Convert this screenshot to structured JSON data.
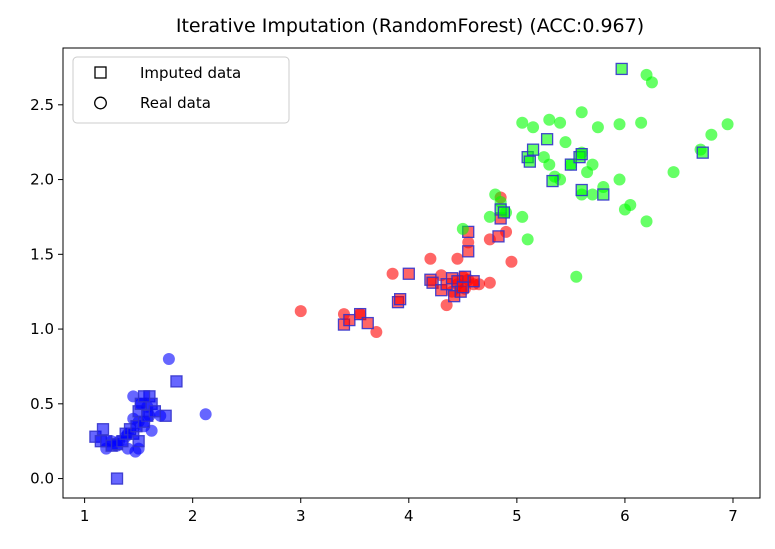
{
  "chart_data": {
    "type": "scatter",
    "title": "Iterative Imputation (RandomForest) (ACC:0.967)",
    "xlabel": "",
    "ylabel": "",
    "xlim": [
      0.8,
      7.25
    ],
    "ylim": [
      -0.13,
      2.88
    ],
    "xticks": [
      1,
      2,
      3,
      4,
      5,
      6,
      7
    ],
    "yticks": [
      0.0,
      0.5,
      1.0,
      1.5,
      2.0,
      2.5
    ],
    "ytick_labels": [
      "0.0",
      "0.5",
      "1.0",
      "1.5",
      "2.0",
      "2.5"
    ],
    "grid": false,
    "legend": {
      "placement": "top-left",
      "entries": [
        {
          "marker": "square",
          "label": "Imputed data"
        },
        {
          "marker": "circle",
          "label": "Real data"
        }
      ]
    },
    "classes": [
      {
        "color": "#0000ff",
        "real": [
          [
            1.32,
            0.25
          ],
          [
            1.4,
            0.3
          ],
          [
            1.5,
            0.2
          ],
          [
            1.55,
            0.35
          ],
          [
            1.45,
            0.55
          ],
          [
            1.6,
            0.42
          ],
          [
            1.7,
            0.42
          ],
          [
            1.78,
            0.8
          ],
          [
            2.12,
            0.43
          ],
          [
            1.2,
            0.2
          ],
          [
            1.38,
            0.28
          ],
          [
            1.62,
            0.32
          ],
          [
            1.47,
            0.18
          ],
          [
            1.3,
            0.22
          ],
          [
            1.52,
            0.5
          ],
          [
            1.58,
            0.48
          ],
          [
            1.25,
            0.25
          ],
          [
            1.45,
            0.4
          ],
          [
            1.5,
            0.38
          ],
          [
            1.4,
            0.2
          ]
        ],
        "imputed": [
          [
            1.1,
            0.28
          ],
          [
            1.15,
            0.25
          ],
          [
            1.17,
            0.33
          ],
          [
            1.2,
            0.25
          ],
          [
            1.25,
            0.22
          ],
          [
            1.3,
            0.0
          ],
          [
            1.3,
            0.23
          ],
          [
            1.35,
            0.25
          ],
          [
            1.38,
            0.3
          ],
          [
            1.42,
            0.33
          ],
          [
            1.45,
            0.3
          ],
          [
            1.48,
            0.35
          ],
          [
            1.5,
            0.45
          ],
          [
            1.52,
            0.5
          ],
          [
            1.55,
            0.38
          ],
          [
            1.58,
            0.42
          ],
          [
            1.6,
            0.55
          ],
          [
            1.62,
            0.5
          ],
          [
            1.65,
            0.45
          ],
          [
            1.75,
            0.42
          ],
          [
            1.85,
            0.65
          ],
          [
            1.55,
            0.55
          ],
          [
            1.5,
            0.25
          ]
        ]
      },
      {
        "color": "#ff0000",
        "real": [
          [
            3.0,
            1.12
          ],
          [
            3.4,
            1.1
          ],
          [
            3.55,
            1.1
          ],
          [
            3.7,
            0.98
          ],
          [
            3.85,
            1.37
          ],
          [
            4.2,
            1.47
          ],
          [
            4.35,
            1.16
          ],
          [
            4.45,
            1.3
          ],
          [
            4.5,
            1.35
          ],
          [
            4.55,
            1.58
          ],
          [
            4.65,
            1.3
          ],
          [
            4.75,
            1.31
          ],
          [
            4.85,
            1.88
          ],
          [
            4.95,
            1.45
          ],
          [
            4.9,
            1.65
          ],
          [
            4.45,
            1.47
          ],
          [
            4.3,
            1.36
          ],
          [
            4.6,
            1.3
          ],
          [
            4.75,
            1.6
          ],
          [
            4.4,
            1.25
          ],
          [
            4.52,
            1.27
          ],
          [
            4.55,
            1.33
          ]
        ],
        "imputed": [
          [
            3.4,
            1.03
          ],
          [
            3.45,
            1.06
          ],
          [
            3.55,
            1.1
          ],
          [
            3.62,
            1.04
          ],
          [
            3.9,
            1.18
          ],
          [
            3.92,
            1.2
          ],
          [
            4.0,
            1.37
          ],
          [
            4.2,
            1.33
          ],
          [
            4.22,
            1.31
          ],
          [
            4.3,
            1.26
          ],
          [
            4.35,
            1.3
          ],
          [
            4.4,
            1.34
          ],
          [
            4.42,
            1.22
          ],
          [
            4.45,
            1.32
          ],
          [
            4.48,
            1.25
          ],
          [
            4.5,
            1.28
          ],
          [
            4.52,
            1.35
          ],
          [
            4.55,
            1.52
          ],
          [
            4.55,
            1.65
          ],
          [
            4.6,
            1.32
          ],
          [
            4.83,
            1.62
          ],
          [
            4.85,
            1.74
          ]
        ]
      },
      {
        "color": "#00ff00",
        "real": [
          [
            4.5,
            1.67
          ],
          [
            4.75,
            1.75
          ],
          [
            4.8,
            1.9
          ],
          [
            4.85,
            1.85
          ],
          [
            4.9,
            1.78
          ],
          [
            5.05,
            1.75
          ],
          [
            5.05,
            2.38
          ],
          [
            5.1,
            1.6
          ],
          [
            5.15,
            2.35
          ],
          [
            5.25,
            2.15
          ],
          [
            5.3,
            2.4
          ],
          [
            5.3,
            2.1
          ],
          [
            5.4,
            2.0
          ],
          [
            5.4,
            2.38
          ],
          [
            5.45,
            2.25
          ],
          [
            5.5,
            2.1
          ],
          [
            5.55,
            1.35
          ],
          [
            5.6,
            1.9
          ],
          [
            5.65,
            2.05
          ],
          [
            5.7,
            1.9
          ],
          [
            5.7,
            2.1
          ],
          [
            5.75,
            2.35
          ],
          [
            5.8,
            1.95
          ],
          [
            5.6,
            2.45
          ],
          [
            5.95,
            2.37
          ],
          [
            5.95,
            2.0
          ],
          [
            6.0,
            1.8
          ],
          [
            6.05,
            1.83
          ],
          [
            6.15,
            2.38
          ],
          [
            6.2,
            1.72
          ],
          [
            6.2,
            2.7
          ],
          [
            6.25,
            2.65
          ],
          [
            6.45,
            2.05
          ],
          [
            6.7,
            2.2
          ],
          [
            6.8,
            2.3
          ],
          [
            6.95,
            2.37
          ],
          [
            5.6,
            2.18
          ],
          [
            5.35,
            2.02
          ]
        ],
        "imputed": [
          [
            4.85,
            1.8
          ],
          [
            4.88,
            1.78
          ],
          [
            5.1,
            2.15
          ],
          [
            5.12,
            2.12
          ],
          [
            5.15,
            2.2
          ],
          [
            5.28,
            2.27
          ],
          [
            5.33,
            1.99
          ],
          [
            5.5,
            2.1
          ],
          [
            5.58,
            2.15
          ],
          [
            5.6,
            2.17
          ],
          [
            5.6,
            1.93
          ],
          [
            5.8,
            1.9
          ],
          [
            5.97,
            2.74
          ],
          [
            6.72,
            2.18
          ]
        ]
      }
    ]
  }
}
